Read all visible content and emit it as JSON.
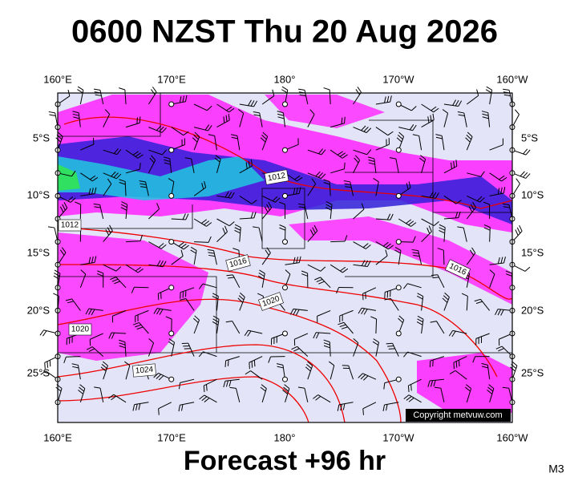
{
  "title": "0600 NZST Thu 20 Aug 2026",
  "map": {
    "lon_labels": [
      "160°E",
      "170°E",
      "180°",
      "170°W",
      "160°W"
    ],
    "lat_labels": [
      "5°S",
      "10°S",
      "15°S",
      "20°S",
      "25°S"
    ],
    "isobar_labels": [
      "1012",
      "1012",
      "1016",
      "1016",
      "1020",
      "1020",
      "1024"
    ]
  },
  "copyright": "Copyright metvuw.com",
  "footer": "Forecast +96 hr",
  "code": "M3"
}
